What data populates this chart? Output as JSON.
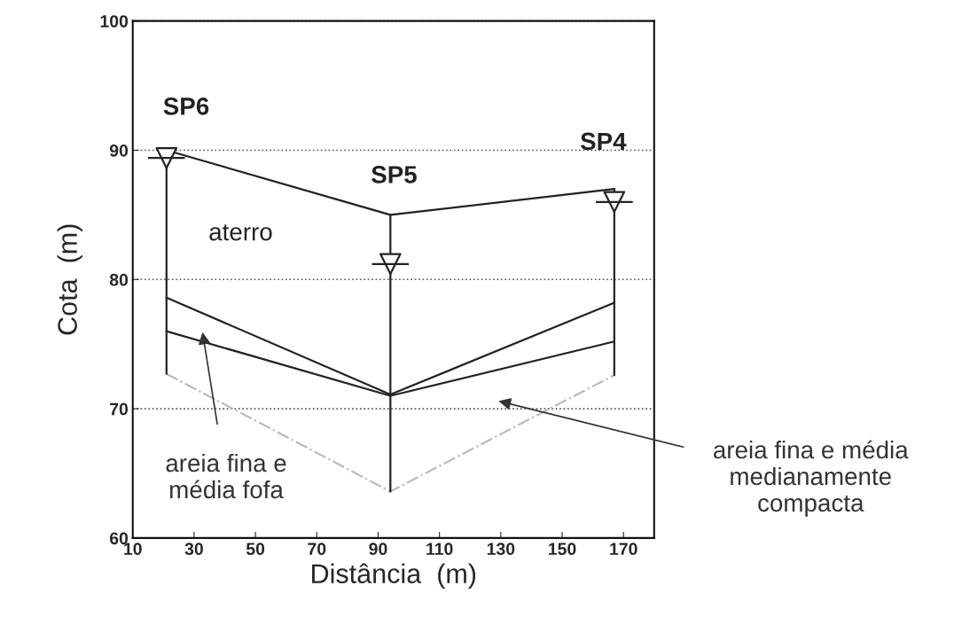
{
  "chart_data": {
    "type": "line",
    "xlabel": "Distância  (m)",
    "ylabel": "Cota  (m)",
    "x": [
      21,
      94,
      167
    ],
    "series": [
      {
        "color": "#222222",
        "values": [
          90,
          85,
          87
        ]
      },
      {
        "color": "#222222",
        "values": [
          78.6,
          71.1,
          78.2
        ]
      },
      {
        "color": "#222222",
        "values": [
          76,
          71,
          75.2
        ]
      },
      {
        "color": "#bbbbbb",
        "values": [
          72.7,
          63.6,
          72.6
        ],
        "line_style": "dashed"
      },
      {
        "color": "#222222",
        "x": [
          21,
          21
        ],
        "values": [
          90,
          72.7
        ]
      },
      {
        "color": "#222222",
        "x": [
          94,
          94
        ],
        "values": [
          85,
          63.6
        ]
      },
      {
        "color": "#222222",
        "x": [
          167,
          167
        ],
        "values": [
          87,
          72.6
        ]
      },
      {
        "type": "scatter",
        "color": "#222222",
        "marker": "triangle",
        "values": [
          89.4,
          81.2,
          86
        ]
      }
    ],
    "annotations": [
      {
        "text": "SP6",
        "x": 21,
        "y": 90
      },
      {
        "text": "SP5",
        "x": 94,
        "y": 85
      },
      {
        "text": "SP4",
        "x": 167,
        "y": 87
      },
      "aterro",
      "areia fina e\nmédia fofa",
      "areia fina e média\nmedianamente\ncompacta"
    ],
    "xlim": [
      10,
      180
    ],
    "xticks": [
      10,
      30,
      50,
      70,
      90,
      110,
      130,
      150,
      170
    ],
    "ylim": [
      60,
      100
    ],
    "yticks": [
      60,
      70,
      80,
      90,
      100
    ],
    "grid": "y",
    "legend": false
  }
}
